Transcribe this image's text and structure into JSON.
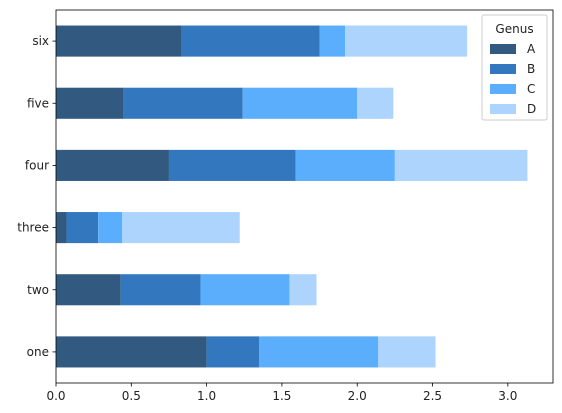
{
  "chart_data": {
    "type": "bar",
    "orientation": "horizontal",
    "stacked": true,
    "categories": [
      "one",
      "two",
      "three",
      "four",
      "five",
      "six"
    ],
    "series": [
      {
        "name": "A",
        "color": "#325a81",
        "values": [
          1.0,
          0.43,
          0.07,
          0.75,
          0.45,
          0.83
        ]
      },
      {
        "name": "B",
        "color": "#3378be",
        "values": [
          0.35,
          0.53,
          0.21,
          0.84,
          0.79,
          0.92
        ]
      },
      {
        "name": "C",
        "color": "#5aaefb",
        "values": [
          0.79,
          0.59,
          0.16,
          0.66,
          0.76,
          0.17
        ]
      },
      {
        "name": "D",
        "color": "#acd4fc",
        "values": [
          0.38,
          0.18,
          0.78,
          0.88,
          0.24,
          0.81
        ]
      }
    ],
    "legend_title": "Genus",
    "legend_position": "top-right",
    "xlim": [
      0,
      3.3
    ],
    "xticks": [
      0.0,
      0.5,
      1.0,
      1.5,
      2.0,
      2.5,
      3.0
    ],
    "xtick_labels": [
      "0.0",
      "0.5",
      "1.0",
      "1.5",
      "2.0",
      "2.5",
      "3.0"
    ],
    "grid": false
  }
}
